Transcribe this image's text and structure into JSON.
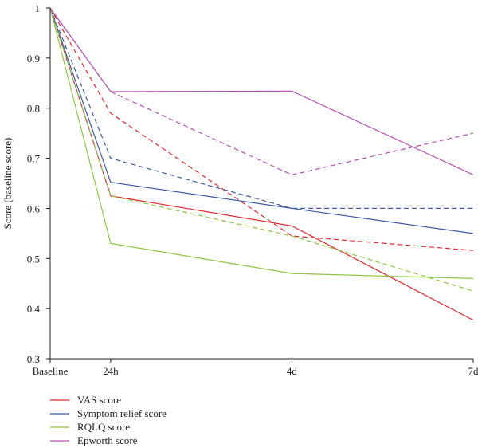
{
  "chart_data": {
    "type": "line",
    "ylabel": "Score (baseline score)",
    "xlabel": "",
    "x_days": [
      0,
      1,
      4,
      7
    ],
    "categories": [
      "Baseline",
      "24h",
      "4d",
      "7d"
    ],
    "ylim": [
      0.3,
      1.0
    ],
    "yticks": [
      0.3,
      0.4,
      0.5,
      0.6,
      0.7,
      0.8,
      0.9,
      1
    ],
    "grid": false,
    "legend_position": "bottom-left",
    "series": [
      {
        "name": "VAS score",
        "color": "#e8262a",
        "style": "solid",
        "values": [
          1,
          0.625,
          0.565,
          0.377
        ]
      },
      {
        "name": "VAS score",
        "color": "#e8262a",
        "style": "dashed",
        "values": [
          1,
          0.79,
          0.545,
          0.516
        ]
      },
      {
        "name": "Symptom relief score",
        "color": "#3b5aa8",
        "style": "solid",
        "values": [
          1,
          0.652,
          0.6,
          0.55
        ]
      },
      {
        "name": "Symptom relief score",
        "color": "#3b5aa8",
        "style": "dashed",
        "values": [
          1,
          0.7,
          0.6,
          0.6
        ]
      },
      {
        "name": "RQLQ score",
        "color": "#8cc63f",
        "style": "solid",
        "values": [
          1,
          0.53,
          0.47,
          0.46
        ]
      },
      {
        "name": "RQLQ score",
        "color": "#8cc63f",
        "style": "dashed",
        "values": [
          1,
          0.625,
          0.545,
          0.435
        ]
      },
      {
        "name": "Epworth score",
        "color": "#b94fb4",
        "style": "solid",
        "values": [
          1,
          0.833,
          0.834,
          0.667
        ]
      },
      {
        "name": "Epworth score",
        "color": "#b94fb4",
        "style": "dashed",
        "values": [
          1,
          0.833,
          0.667,
          0.75
        ]
      }
    ],
    "legend": [
      {
        "label": "VAS score",
        "color": "#e8262a"
      },
      {
        "label": "Symptom relief score",
        "color": "#3b5aa8"
      },
      {
        "label": "RQLQ score",
        "color": "#8cc63f"
      },
      {
        "label": "Epworth score",
        "color": "#b94fb4"
      }
    ]
  }
}
